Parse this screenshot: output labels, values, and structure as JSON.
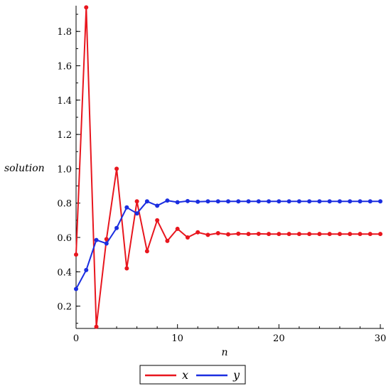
{
  "chart_data": {
    "type": "line",
    "title": "",
    "xlabel": "n",
    "ylabel": "solution",
    "xlim": [
      0,
      30
    ],
    "ylim": [
      0.07,
      1.95
    ],
    "xticks": [
      "0",
      "10",
      "20",
      "30"
    ],
    "yticks": [
      "0.2",
      "0.4",
      "0.6",
      "0.8",
      "1.0",
      "1.2",
      "1.4",
      "1.6",
      "1.8"
    ],
    "grid": false,
    "legend_position": "bottom-center",
    "series": [
      {
        "name": "x",
        "color": "#e8161e",
        "x": [
          0,
          1,
          2,
          3,
          4,
          5,
          6,
          7,
          8,
          9,
          10,
          11,
          12,
          13,
          14,
          15,
          16,
          17,
          18,
          19,
          20,
          21,
          22,
          23,
          24,
          25,
          26,
          27,
          28,
          29,
          30
        ],
        "values": [
          0.5,
          1.94,
          0.08,
          0.59,
          1.0,
          0.42,
          0.81,
          0.52,
          0.7,
          0.58,
          0.65,
          0.6,
          0.63,
          0.615,
          0.625,
          0.618,
          0.622,
          0.62,
          0.621,
          0.62,
          0.62,
          0.62,
          0.62,
          0.62,
          0.62,
          0.62,
          0.62,
          0.62,
          0.62,
          0.62,
          0.62
        ]
      },
      {
        "name": "y",
        "color": "#1b2ee0",
        "x": [
          0,
          1,
          2,
          3,
          4,
          5,
          6,
          7,
          8,
          9,
          10,
          11,
          12,
          13,
          14,
          15,
          16,
          17,
          18,
          19,
          20,
          21,
          22,
          23,
          24,
          25,
          26,
          27,
          28,
          29,
          30
        ],
        "values": [
          0.3,
          0.41,
          0.585,
          0.565,
          0.655,
          0.775,
          0.74,
          0.81,
          0.785,
          0.815,
          0.805,
          0.812,
          0.808,
          0.81,
          0.81,
          0.81,
          0.81,
          0.81,
          0.81,
          0.81,
          0.81,
          0.81,
          0.81,
          0.81,
          0.81,
          0.81,
          0.81,
          0.81,
          0.81,
          0.81,
          0.81
        ]
      }
    ]
  }
}
